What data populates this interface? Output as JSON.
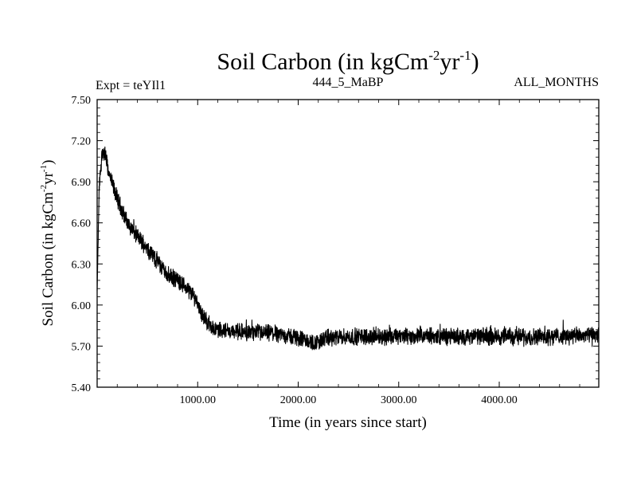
{
  "chart_data": {
    "type": "line",
    "title": {
      "main": "Soil Carbon (in kgCm",
      "sup1": "-2",
      "mid": "yr",
      "sup2": "-1",
      "end": ")"
    },
    "subtitles": {
      "left": "Expt = teYIl1",
      "center": "444_5_MaBP",
      "right": "ALL_MONTHS"
    },
    "xlabel": "Time (in years since start)",
    "ylabel": {
      "main": "Soil Carbon (in kgCm",
      "sup1": "-2",
      "mid": "yr",
      "sup2": "-1",
      "end": ")"
    },
    "xlim": [
      0,
      4990
    ],
    "ylim": [
      5.4,
      7.5
    ],
    "xticks": [
      {
        "value": 1000,
        "label": "1000.00"
      },
      {
        "value": 2000,
        "label": "2000.00"
      },
      {
        "value": 3000,
        "label": "3000.00"
      },
      {
        "value": 4000,
        "label": "4000.00"
      }
    ],
    "yticks": [
      {
        "value": 5.4,
        "label": "5.40"
      },
      {
        "value": 5.7,
        "label": "5.70"
      },
      {
        "value": 6.0,
        "label": "6.00"
      },
      {
        "value": 6.3,
        "label": "6.30"
      },
      {
        "value": 6.6,
        "label": "6.60"
      },
      {
        "value": 6.9,
        "label": "6.90"
      },
      {
        "value": 7.2,
        "label": "7.20"
      },
      {
        "value": 7.5,
        "label": "7.50"
      }
    ],
    "series": [
      {
        "name": "Soil Carbon",
        "color": "#000000",
        "trend": {
          "x": [
            0,
            20,
            50,
            80,
            120,
            200,
            300,
            400,
            500,
            600,
            700,
            800,
            900,
            980,
            1050,
            1150,
            1300,
            1500,
            1800,
            2000,
            2150,
            2300,
            2600,
            3000,
            3500,
            4000,
            4500,
            4990
          ],
          "y": [
            6.1,
            6.85,
            7.12,
            7.1,
            6.95,
            6.78,
            6.6,
            6.5,
            6.42,
            6.32,
            6.22,
            6.18,
            6.12,
            6.05,
            5.92,
            5.83,
            5.81,
            5.8,
            5.79,
            5.76,
            5.72,
            5.76,
            5.77,
            5.77,
            5.77,
            5.77,
            5.77,
            5.78
          ]
        },
        "noise_amplitude": 0.05
      }
    ]
  }
}
